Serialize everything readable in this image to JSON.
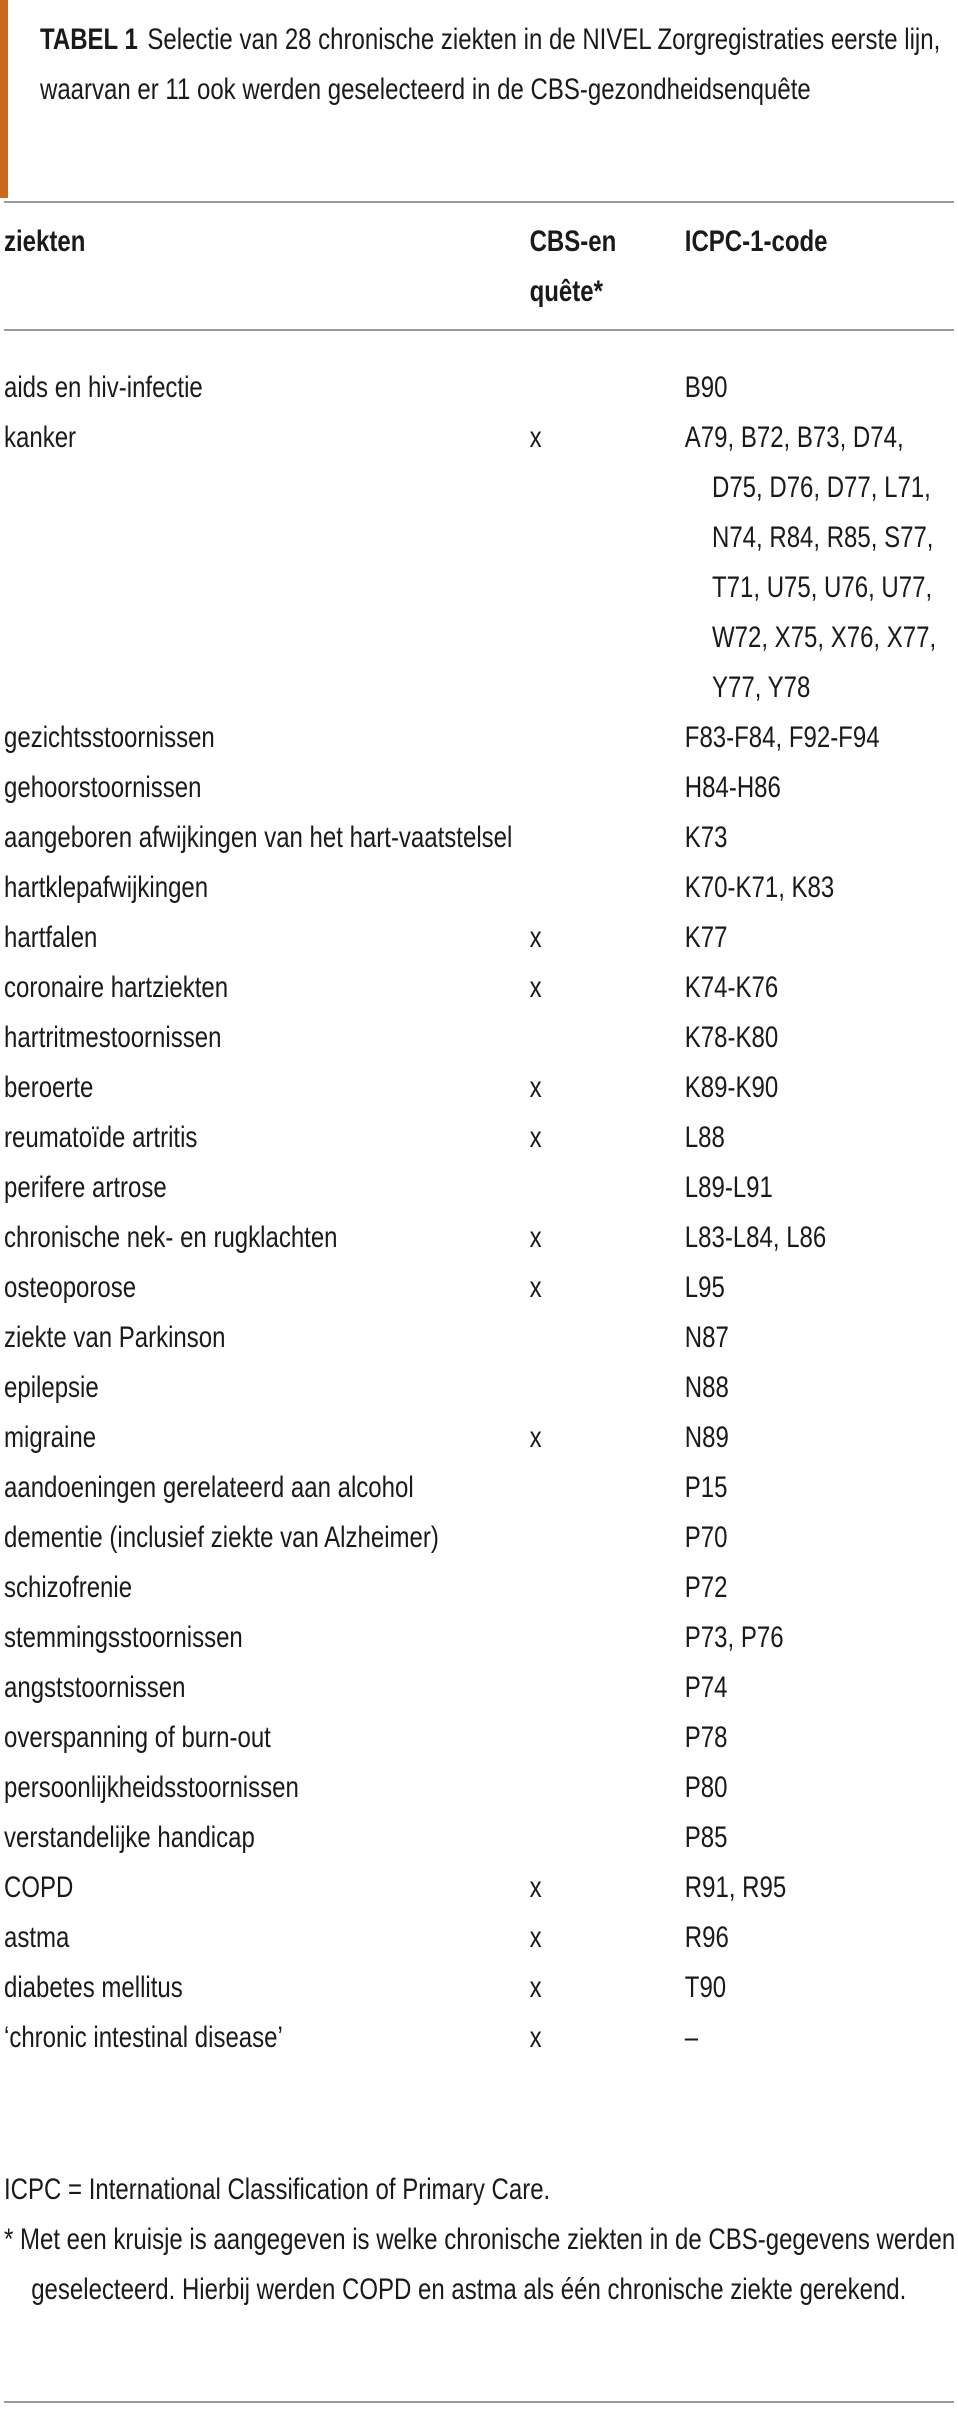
{
  "title": {
    "label": "TABEL 1",
    "text": "Selectie van 28 chronische ziekten in de NIVEL Zorgregistraties eerste lijn, waarvan er 11 ook werden geselecteerd in de CBS-gezondheidsenquête"
  },
  "accent_color": "#c8691c",
  "headers": {
    "disease": "ziekten",
    "cbs": "CBS-enquête*",
    "icpc": "ICPC-1-code"
  },
  "rows": [
    {
      "name": "aids en hiv-infectie",
      "cbs": "",
      "codes": [
        "B90"
      ]
    },
    {
      "name": "kanker",
      "cbs": "x",
      "codes": [
        "A79, B72, B73, D74,",
        "D75, D76, D77, L71,",
        "N74, R84, R85, S77,",
        "T71, U75, U76, U77,",
        "W72, X75, X76, X77,",
        "Y77, Y78"
      ]
    },
    {
      "name": "gezichtsstoornissen",
      "cbs": "",
      "codes": [
        "F83-F84, F92-F94"
      ]
    },
    {
      "name": "gehoorstoornissen",
      "cbs": "",
      "codes": [
        "H84-H86"
      ]
    },
    {
      "name": "aangeboren afwijkingen van het hart-vaatstelsel",
      "cbs": "",
      "codes": [
        "K73"
      ]
    },
    {
      "name": "hartklepafwijkingen",
      "cbs": "",
      "codes": [
        "K70-K71, K83"
      ]
    },
    {
      "name": "hartfalen",
      "cbs": "x",
      "codes": [
        "K77"
      ]
    },
    {
      "name": "coronaire hartziekten",
      "cbs": "x",
      "codes": [
        "K74-K76"
      ]
    },
    {
      "name": "hartritmestoornissen",
      "cbs": "",
      "codes": [
        "K78-K80"
      ]
    },
    {
      "name": "beroerte",
      "cbs": "x",
      "codes": [
        "K89-K90"
      ]
    },
    {
      "name": "reumatoïde artritis",
      "cbs": "x",
      "codes": [
        "L88"
      ]
    },
    {
      "name": "perifere artrose",
      "cbs": "",
      "codes": [
        "L89-L91"
      ]
    },
    {
      "name": "chronische nek- en rugklachten",
      "cbs": "x",
      "codes": [
        "L83-L84, L86"
      ]
    },
    {
      "name": "osteoporose",
      "cbs": "x",
      "codes": [
        "L95"
      ]
    },
    {
      "name": "ziekte van Parkinson",
      "cbs": "",
      "codes": [
        "N87"
      ]
    },
    {
      "name": "epilepsie",
      "cbs": "",
      "codes": [
        "N88"
      ]
    },
    {
      "name": "migraine",
      "cbs": "x",
      "codes": [
        "N89"
      ]
    },
    {
      "name": "aandoeningen gerelateerd aan alcohol",
      "cbs": "",
      "codes": [
        "P15"
      ]
    },
    {
      "name": "dementie (inclusief ziekte van Alzheimer)",
      "cbs": "",
      "codes": [
        "P70"
      ]
    },
    {
      "name": "schizofrenie",
      "cbs": "",
      "codes": [
        "P72"
      ]
    },
    {
      "name": "stemmingsstoornissen",
      "cbs": "",
      "codes": [
        "P73, P76"
      ]
    },
    {
      "name": "angststoornissen",
      "cbs": "",
      "codes": [
        "P74"
      ]
    },
    {
      "name": "overspanning of burn-out",
      "cbs": "",
      "codes": [
        "P78"
      ]
    },
    {
      "name": "persoonlijkheidsstoornissen",
      "cbs": "",
      "codes": [
        "P80"
      ]
    },
    {
      "name": "verstandelijke handicap",
      "cbs": "",
      "codes": [
        "P85"
      ]
    },
    {
      "name": "COPD",
      "cbs": "x",
      "codes": [
        "R91, R95"
      ]
    },
    {
      "name": "astma",
      "cbs": "x",
      "codes": [
        "R96"
      ]
    },
    {
      "name": "diabetes mellitus",
      "cbs": "x",
      "codes": [
        "T90"
      ]
    },
    {
      "name": "‘chronic intestinal disease’",
      "cbs": "x",
      "codes": [
        "–"
      ]
    }
  ],
  "notes": {
    "abbreviation": "ICPC = International Classification of Primary Care.",
    "footnote": "* Met een kruisje is aangegeven is welke chronische ziekten in de CBS-gegevens werden geselecteerd. Hierbij werden COPD en astma als één chronische ziekte gerekend."
  }
}
